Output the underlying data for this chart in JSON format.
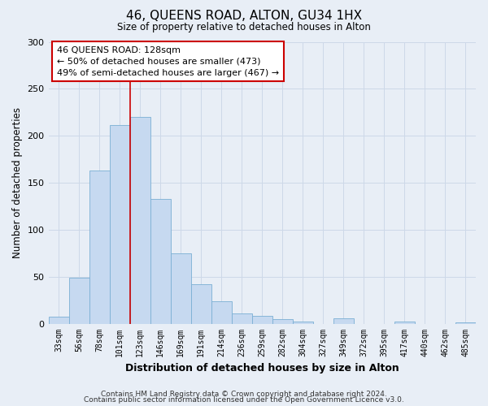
{
  "title": "46, QUEENS ROAD, ALTON, GU34 1HX",
  "subtitle": "Size of property relative to detached houses in Alton",
  "xlabel": "Distribution of detached houses by size in Alton",
  "ylabel": "Number of detached properties",
  "bar_labels": [
    "33sqm",
    "56sqm",
    "78sqm",
    "101sqm",
    "123sqm",
    "146sqm",
    "169sqm",
    "191sqm",
    "214sqm",
    "236sqm",
    "259sqm",
    "282sqm",
    "304sqm",
    "327sqm",
    "349sqm",
    "372sqm",
    "395sqm",
    "417sqm",
    "440sqm",
    "462sqm",
    "485sqm"
  ],
  "bar_values": [
    7,
    49,
    163,
    211,
    220,
    133,
    75,
    42,
    24,
    11,
    8,
    5,
    2,
    0,
    6,
    0,
    0,
    2,
    0,
    0,
    1
  ],
  "bar_color": "#c6d9f0",
  "bar_edge_color": "#7bafd4",
  "vline_x_index": 4,
  "vline_color": "#cc0000",
  "annotation_text": "46 QUEENS ROAD: 128sqm\n← 50% of detached houses are smaller (473)\n49% of semi-detached houses are larger (467) →",
  "annotation_box_facecolor": "#ffffff",
  "annotation_box_edgecolor": "#cc0000",
  "ylim": [
    0,
    300
  ],
  "yticks": [
    0,
    50,
    100,
    150,
    200,
    250,
    300
  ],
  "grid_color": "#cdd8e8",
  "bg_color": "#e8eef6",
  "footer1": "Contains HM Land Registry data © Crown copyright and database right 2024.",
  "footer2": "Contains public sector information licensed under the Open Government Licence v3.0."
}
